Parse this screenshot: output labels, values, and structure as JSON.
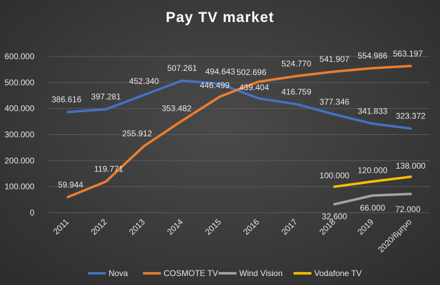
{
  "chart_data": {
    "type": "line",
    "title": "Pay TV market",
    "xlabel": "",
    "ylabel": "",
    "categories": [
      "2011",
      "2012",
      "2013",
      "2014",
      "2015",
      "2016",
      "2017",
      "2018",
      "2019",
      "2020/6μηνο"
    ],
    "ylim": [
      0,
      600000
    ],
    "yticks": [
      0,
      100000,
      200000,
      300000,
      400000,
      500000,
      600000
    ],
    "ytick_labels": [
      "0",
      "100.000",
      "200.000",
      "300.000",
      "400.000",
      "500.000",
      "600.000"
    ],
    "grid": true,
    "legend_position": "bottom",
    "series": [
      {
        "name": "Nova",
        "color": "#4472c4",
        "values": [
          386616,
          397281,
          452340,
          507261,
          494643,
          439404,
          416759,
          377346,
          341833,
          323372
        ],
        "labels": [
          "386.616",
          "397.281",
          "452.340",
          "507.261",
          "494.643",
          "439.404",
          "416.759",
          "377.346",
          "341.833",
          "323.372"
        ]
      },
      {
        "name": "COSMOTE TV",
        "color": "#ed7d31",
        "values": [
          59944,
          119771,
          255912,
          353482,
          446499,
          502696,
          524770,
          541907,
          554986,
          563197
        ],
        "labels": [
          "59.944",
          "119.771",
          "255.912",
          "353.482",
          "446.499",
          "502.696",
          "524.770",
          "541.907",
          "554.986",
          "563.197"
        ]
      },
      {
        "name": "Wind Vision",
        "color": "#a5a5a5",
        "values": [
          null,
          null,
          null,
          null,
          null,
          null,
          null,
          32600,
          66000,
          72000
        ],
        "labels": [
          null,
          null,
          null,
          null,
          null,
          null,
          null,
          "32.600",
          "66.000",
          "72.000"
        ]
      },
      {
        "name": "Vodafone TV",
        "color": "#ffc000",
        "values": [
          null,
          null,
          null,
          null,
          null,
          null,
          null,
          100000,
          120000,
          138000
        ],
        "labels": [
          null,
          null,
          null,
          null,
          null,
          null,
          null,
          "100.000",
          "120.000",
          "138.000"
        ]
      }
    ]
  }
}
